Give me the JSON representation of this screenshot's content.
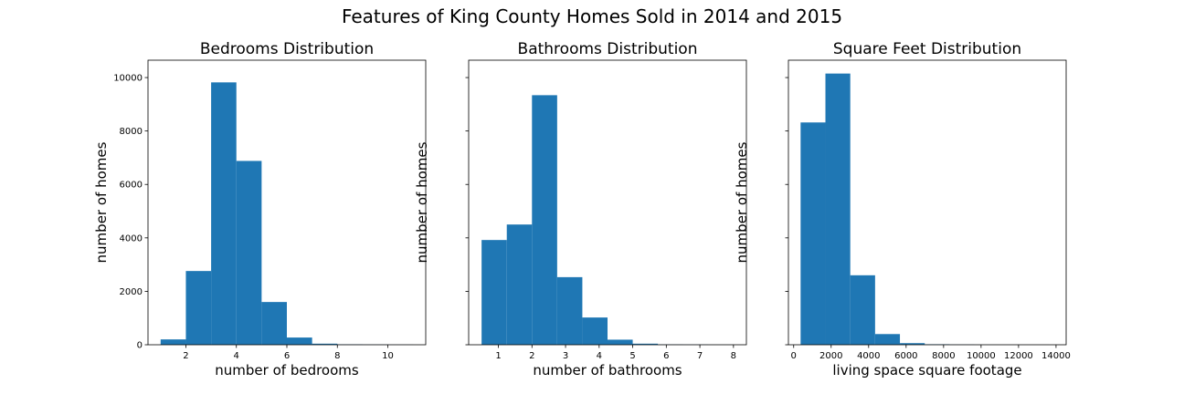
{
  "suptitle": "Features of King County Homes Sold in 2014 and 2015",
  "colors": {
    "bar": "#1f77b4",
    "axis": "#000000",
    "background": "#ffffff"
  },
  "chart_data": [
    {
      "type": "bar",
      "title": "Bedrooms Distribution",
      "xlabel": "number of bedrooms",
      "ylabel": "number of homes",
      "xlim": [
        0.5,
        11.5
      ],
      "ylim": [
        0,
        10650
      ],
      "xticks": [
        2,
        4,
        6,
        8,
        10
      ],
      "yticks": [
        0,
        2000,
        4000,
        6000,
        8000,
        10000
      ],
      "show_ytick_labels": true,
      "bin_edges": [
        1,
        2,
        3,
        4,
        5,
        6,
        7,
        8,
        9,
        10,
        11
      ],
      "values": [
        200,
        2760,
        9820,
        6880,
        1600,
        270,
        40,
        13,
        6,
        3
      ]
    },
    {
      "type": "bar",
      "title": "Bathrooms Distribution",
      "xlabel": "number of bathrooms",
      "ylabel": "number of homes",
      "xlim": [
        0.115,
        8.385
      ],
      "ylim": [
        0,
        10650
      ],
      "xticks": [
        1,
        2,
        3,
        4,
        5,
        6,
        7,
        8
      ],
      "yticks": [
        0,
        2000,
        4000,
        6000,
        8000,
        10000
      ],
      "show_ytick_labels": false,
      "bin_edges": [
        0.5,
        1.25,
        2.0,
        2.75,
        3.5,
        4.25,
        5.0,
        5.75,
        6.5,
        7.25,
        8.0
      ],
      "values": [
        3920,
        4500,
        9340,
        2530,
        1020,
        190,
        40,
        10,
        5,
        2
      ]
    },
    {
      "type": "bar",
      "title": "Square Feet Distribution",
      "xlabel": "living space square footage",
      "ylabel": "number of homes",
      "xlim": [
        -280,
        14540
      ],
      "ylim": [
        0,
        10650
      ],
      "xticks": [
        0,
        2000,
        4000,
        6000,
        8000,
        10000,
        12000,
        14000
      ],
      "yticks": [
        0,
        2000,
        4000,
        6000,
        8000,
        10000
      ],
      "show_ytick_labels": false,
      "bin_edges": [
        370,
        1695,
        3020,
        4345,
        5670,
        6995,
        8320,
        9645,
        10970,
        12295,
        13620
      ],
      "values": [
        8320,
        10150,
        2600,
        400,
        60,
        18,
        6,
        2,
        1,
        1
      ]
    }
  ]
}
